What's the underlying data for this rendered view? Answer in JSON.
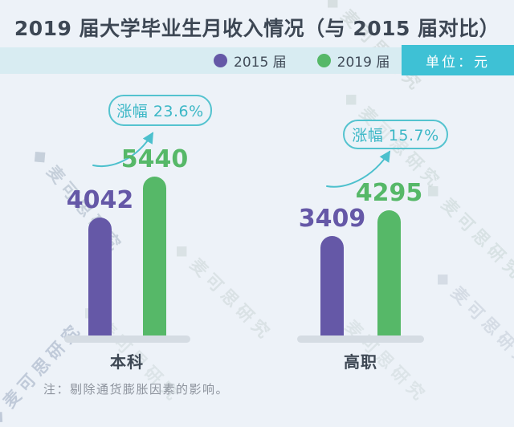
{
  "chart_data": {
    "type": "bar",
    "title": "2019 届大学毕业生月收入情况（与 2015 届对比）",
    "unit_label": "单位：元",
    "categories": [
      "本科",
      "高职"
    ],
    "series": [
      {
        "name": "2015 届",
        "color": "#6558a7",
        "values": [
          4042,
          3409
        ]
      },
      {
        "name": "2019 届",
        "color": "#56b868",
        "values": [
          5440,
          4295
        ]
      }
    ],
    "annotations": [
      {
        "label": "涨幅 23.6%",
        "target": "本科"
      },
      {
        "label": "涨幅 15.7%",
        "target": "高职"
      }
    ],
    "legend_position": "top",
    "grid": false,
    "value_labels": true,
    "ylim": [
      0,
      5800
    ]
  },
  "note": "注：剔除通货膨胀因素的影响。",
  "watermark": {
    "text": "麦可思研究"
  },
  "colors": {
    "background": "#edf2f8",
    "title_text": "#3d4754",
    "legend_band": "#d8ecf2",
    "unit_badge": "#3ec1d5",
    "bar_2015": "#6558a7",
    "bar_2019": "#56b868",
    "callout_teal": "#3bb7c6",
    "baseline_gray": "#d5dce3",
    "note_gray": "#8d939d"
  }
}
